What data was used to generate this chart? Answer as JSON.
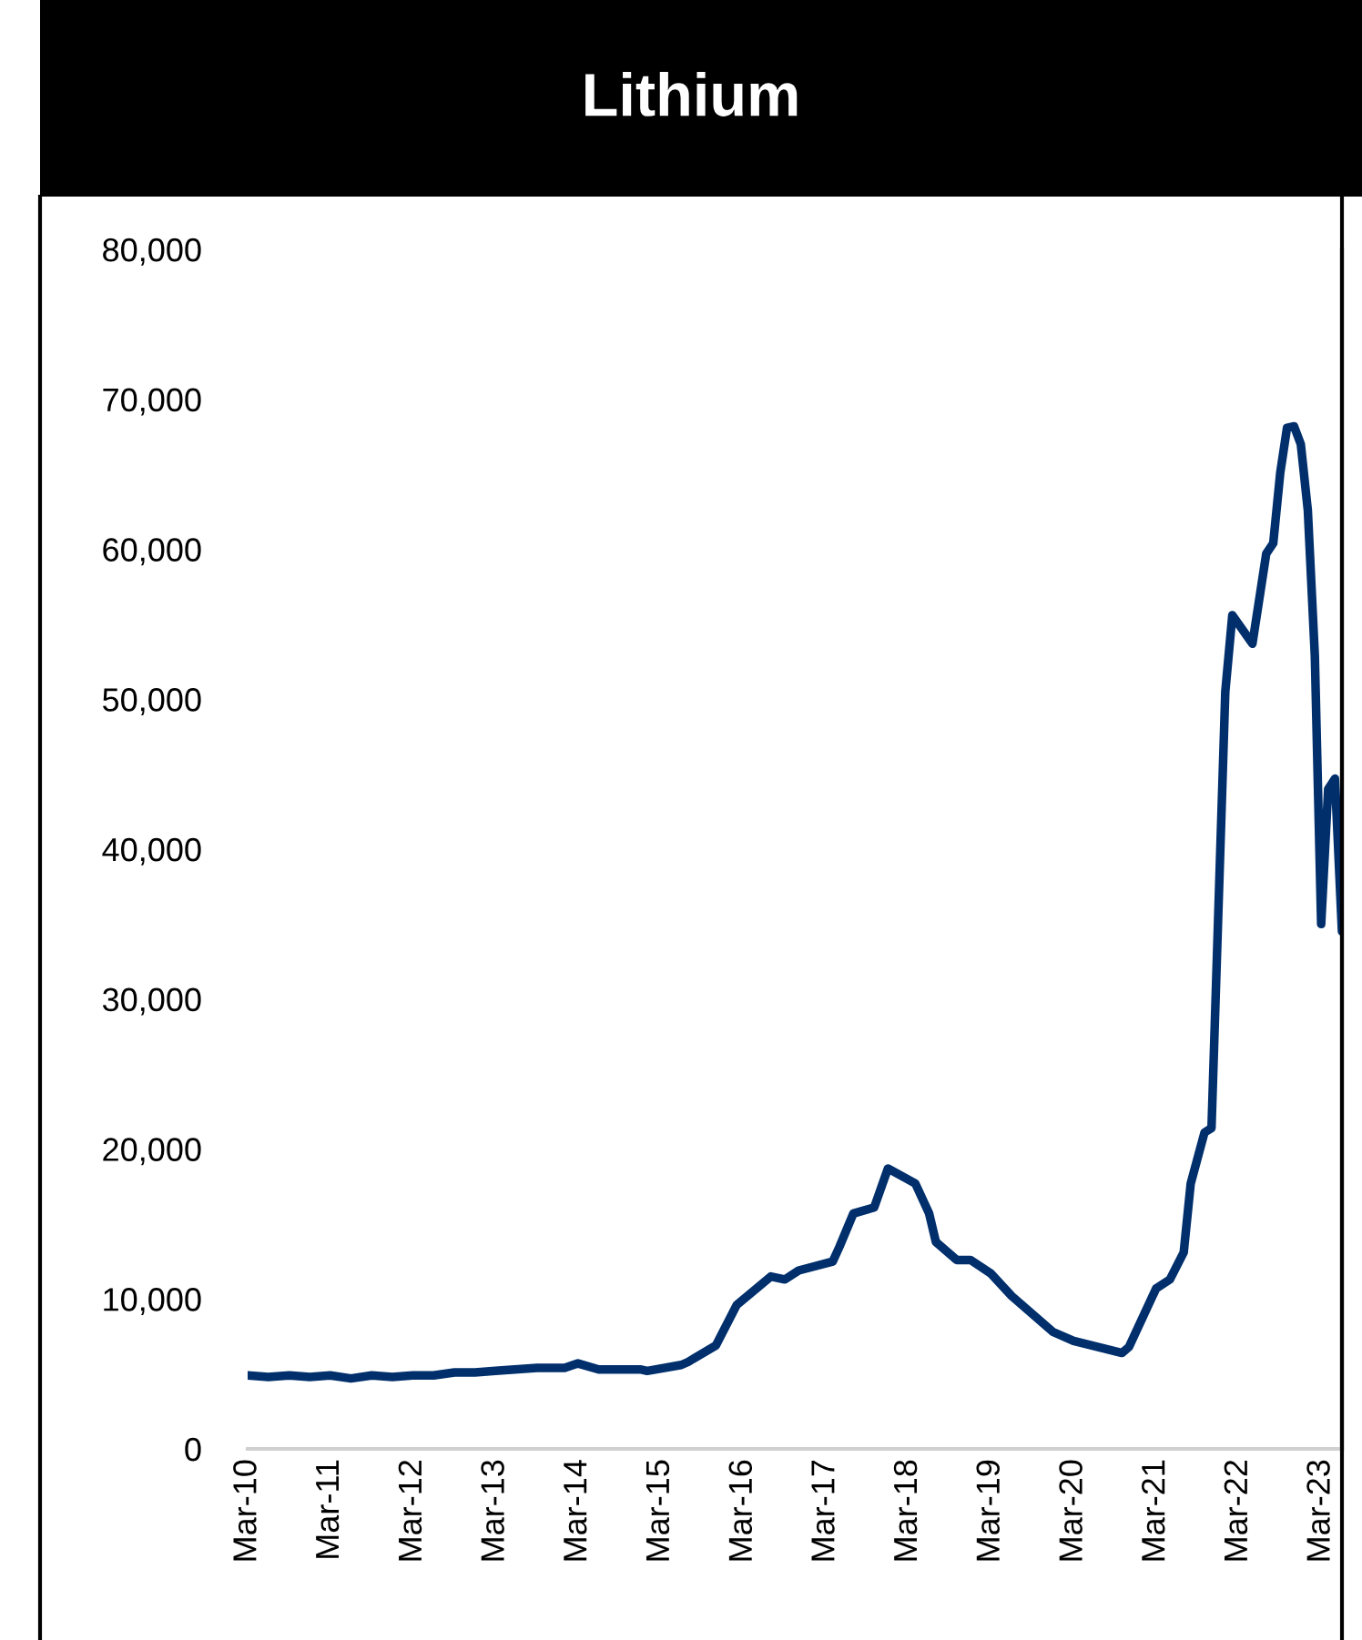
{
  "chart_data": {
    "type": "line",
    "title": "Lithium",
    "x": [
      "2010-03",
      "2010-06",
      "2010-09",
      "2010-12",
      "2011-03",
      "2011-06",
      "2011-09",
      "2011-12",
      "2012-03",
      "2012-06",
      "2012-09",
      "2012-12",
      "2013-03",
      "2013-09",
      "2014-01",
      "2014-03",
      "2014-06",
      "2014-12",
      "2015-01",
      "2015-06",
      "2015-07",
      "2015-11",
      "2016-02",
      "2016-07",
      "2016-09",
      "2016-11",
      "2017-04",
      "2017-05",
      "2017-07",
      "2017-10",
      "2017-12",
      "2018-04",
      "2018-06",
      "2018-07",
      "2018-10",
      "2018-12",
      "2019-03",
      "2019-06",
      "2019-12",
      "2020-03",
      "2020-10",
      "2020-11",
      "2021-03",
      "2021-05",
      "2021-07",
      "2021-08",
      "2021-10",
      "2021-11",
      "2022-01",
      "2022-02",
      "2022-05",
      "2022-07",
      "2022-08",
      "2022-09",
      "2022-10",
      "2022-11",
      "2022-12",
      "2023-01",
      "2023-02",
      "2023-03",
      "2023-04",
      "2023-05",
      "2023-06"
    ],
    "series": [
      {
        "color": "#002f6c",
        "values": [
          4900,
          4800,
          4900,
          4800,
          4900,
          4700,
          4900,
          4800,
          4900,
          4900,
          5100,
          5100,
          5200,
          5400,
          5400,
          5700,
          5300,
          5300,
          5200,
          5600,
          5800,
          6900,
          9600,
          11500,
          11300,
          11900,
          12500,
          13500,
          15700,
          16100,
          18700,
          17700,
          15700,
          13800,
          12600,
          12600,
          11700,
          10200,
          7800,
          7200,
          6400,
          6800,
          10700,
          11300,
          13100,
          17700,
          21100,
          21400,
          50500,
          55600,
          53700,
          59700,
          60400,
          65100,
          68100,
          68200,
          67000,
          62600,
          52900,
          35000,
          44000,
          44700,
          34500
        ]
      }
    ],
    "xlim": [
      "2010-03",
      "2023-06"
    ],
    "xticks": [
      {
        "value": "2010-03",
        "label": "Mar-10"
      },
      {
        "value": "2011-03",
        "label": "Mar-11"
      },
      {
        "value": "2012-03",
        "label": "Mar-12"
      },
      {
        "value": "2013-03",
        "label": "Mar-13"
      },
      {
        "value": "2014-03",
        "label": "Mar-14"
      },
      {
        "value": "2015-03",
        "label": "Mar-15"
      },
      {
        "value": "2016-03",
        "label": "Mar-16"
      },
      {
        "value": "2017-03",
        "label": "Mar-17"
      },
      {
        "value": "2018-03",
        "label": "Mar-18"
      },
      {
        "value": "2019-03",
        "label": "Mar-19"
      },
      {
        "value": "2020-03",
        "label": "Mar-20"
      },
      {
        "value": "2021-03",
        "label": "Mar-21"
      },
      {
        "value": "2022-03",
        "label": "Mar-22"
      },
      {
        "value": "2023-03",
        "label": "Mar-23"
      }
    ],
    "ylim": [
      0,
      80000
    ],
    "yticks": [
      0,
      {
        "value": 10000,
        "label": "10,000"
      },
      {
        "value": 20000,
        "label": "20,000"
      },
      {
        "value": 30000,
        "label": "30,000"
      },
      {
        "value": 40000,
        "label": "40,000"
      },
      {
        "value": 50000,
        "label": "50,000"
      },
      {
        "value": 60000,
        "label": "60,000"
      },
      {
        "value": 70000,
        "label": "70,000"
      },
      {
        "value": 80000,
        "label": "80,000"
      }
    ],
    "grid": false,
    "legend": false,
    "marker": "none",
    "line_style": "solid"
  }
}
